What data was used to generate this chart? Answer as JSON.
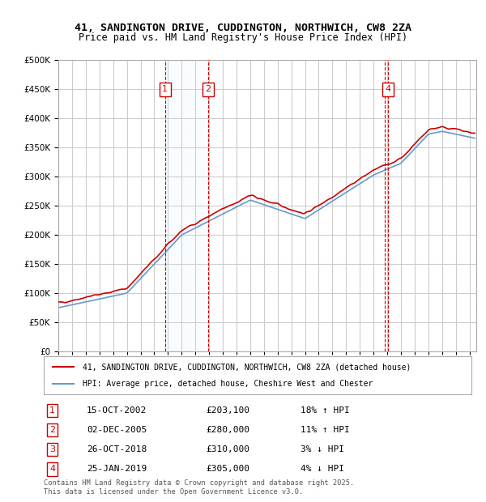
{
  "title_line1": "41, SANDINGTON DRIVE, CUDDINGTON, NORTHWICH, CW8 2ZA",
  "title_line2": "Price paid vs. HM Land Registry's House Price Index (HPI)",
  "legend_label1": "41, SANDINGTON DRIVE, CUDDINGTON, NORTHWICH, CW8 2ZA (detached house)",
  "legend_label2": "HPI: Average price, detached house, Cheshire West and Chester",
  "footer": "Contains HM Land Registry data © Crown copyright and database right 2025.\nThis data is licensed under the Open Government Licence v3.0.",
  "transactions": [
    {
      "num": 1,
      "date": "15-OCT-2002",
      "price": 203100,
      "hpi_pct": "18% ↑ HPI",
      "x_year": 2002.79
    },
    {
      "num": 2,
      "date": "02-DEC-2005",
      "price": 280000,
      "hpi_pct": "11% ↑ HPI",
      "x_year": 2005.92
    },
    {
      "num": 3,
      "date": "26-OCT-2018",
      "price": 310000,
      "hpi_pct": "3% ↓ HPI",
      "x_year": 2018.82
    },
    {
      "num": 4,
      "date": "25-JAN-2019",
      "price": 305000,
      "hpi_pct": "4% ↓ HPI",
      "x_year": 2019.07
    }
  ],
  "ylim": [
    0,
    500000
  ],
  "yticks": [
    0,
    50000,
    100000,
    150000,
    200000,
    250000,
    300000,
    350000,
    400000,
    450000,
    500000
  ],
  "xlim_start": 1995.0,
  "xlim_end": 2025.5,
  "red_color": "#cc0000",
  "blue_color": "#6699cc",
  "shade_color": "#ddeeff",
  "grid_color": "#cccccc",
  "background_color": "#ffffff"
}
